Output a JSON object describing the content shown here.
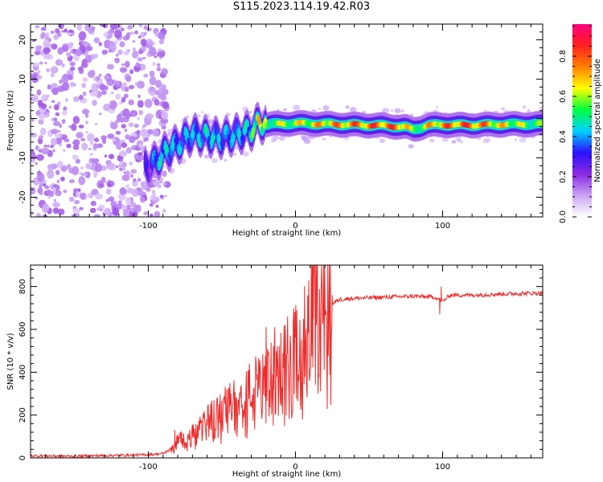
{
  "title": "S115.2023.114.19.42.R03",
  "chart_data": [
    {
      "type": "heatmap",
      "xlabel": "Height of straight line (km)",
      "ylabel": "Frequency (Hz)",
      "xlim": [
        -180,
        168
      ],
      "ylim": [
        -25,
        24
      ],
      "x_ticks": [
        -100,
        0,
        100
      ],
      "y_ticks": [
        -20,
        -10,
        0,
        10,
        20
      ],
      "colorbar": {
        "label": "Normalized spectral amplitude",
        "range": [
          0.0,
          0.96
        ],
        "ticks": [
          0.0,
          0.2,
          0.4,
          0.6,
          0.8
        ],
        "colors": [
          "#ffffff",
          "#c9a3f5",
          "#8a2be2",
          "#2a10ff",
          "#00d0ff",
          "#00ff40",
          "#ffff00",
          "#ff8000",
          "#ff2020",
          "#ff0080"
        ]
      },
      "ridge": {
        "description_points_km": [
          -180,
          -100,
          -95,
          -90,
          -80,
          -70,
          -60,
          -50,
          -40,
          -30,
          -25,
          -20,
          0,
          20,
          40,
          60,
          75,
          80,
          85,
          90,
          100,
          120,
          140,
          168
        ],
        "frequency_hz": [
          -12,
          -12,
          -11,
          -9,
          -6.5,
          -4,
          -4.5,
          -5,
          -4,
          -3,
          -1,
          -1.5,
          -1.2,
          -1.4,
          -1.6,
          -1.8,
          -2.2,
          -2.8,
          -2.3,
          -1.7,
          -1.6,
          -1.7,
          -1.5,
          -1.4
        ],
        "peak_amplitude": [
          0.25,
          0.3,
          0.45,
          0.5,
          0.45,
          0.45,
          0.5,
          0.45,
          0.45,
          0.55,
          0.75,
          0.65,
          0.7,
          0.8,
          0.85,
          0.9,
          0.85,
          0.6,
          0.7,
          0.75,
          0.85,
          0.9,
          0.75,
          0.6
        ]
      },
      "noise_region_km": [
        -180,
        -95
      ]
    },
    {
      "type": "line",
      "xlabel": "Height of straight line (km)",
      "ylabel": "SNR (10 * v/v)",
      "xlim": [
        -180,
        168
      ],
      "ylim": [
        0,
        900
      ],
      "x_ticks": [
        -100,
        0,
        100
      ],
      "y_ticks": [
        0,
        200,
        400,
        600,
        800
      ],
      "color": "#ee2c2c",
      "series": [
        {
          "x": [
            -180,
            -150,
            -120,
            -100,
            -90,
            -85,
            -80,
            -70,
            -60,
            -50,
            -40,
            -30,
            -20,
            -10,
            0,
            5,
            10,
            12,
            15,
            20,
            25,
            30,
            40,
            60,
            80,
            95,
            100,
            105,
            120,
            140,
            168
          ],
          "y": [
            10,
            8,
            12,
            15,
            20,
            40,
            80,
            100,
            160,
            200,
            250,
            300,
            340,
            420,
            450,
            500,
            560,
            700,
            620,
            680,
            720,
            740,
            745,
            750,
            755,
            750,
            730,
            760,
            760,
            765,
            770
          ]
        }
      ],
      "spike_points": [
        {
          "x": -82,
          "y": 130
        },
        {
          "x": -20,
          "y": 610
        },
        {
          "x": -15,
          "y": 520
        },
        {
          "x": 12,
          "y": 895
        },
        {
          "x": 25,
          "y": 760
        },
        {
          "x": 99,
          "y": 800
        },
        {
          "x": 98,
          "y": 670
        }
      ]
    }
  ]
}
